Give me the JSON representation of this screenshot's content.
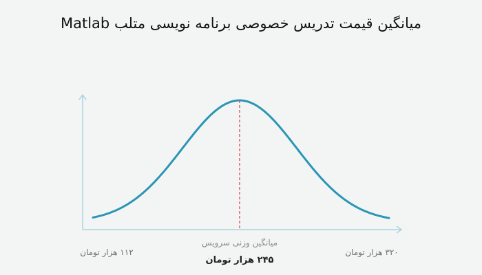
{
  "chart_data": {
    "type": "line",
    "title": "میانگین قیمت تدریس خصوصی برنامه نویسی متلب Matlab",
    "xlabel": "",
    "ylabel": "",
    "distribution": "normal",
    "min_label": "۱۱۲ هزار تومان",
    "max_label": "۳۲۰ هزار تومان",
    "mean_caption": "میانگین وزنی سرویس",
    "mean_value_label": "۲۴۵ هزار تومان",
    "min_value": 112,
    "max_value": 320,
    "mean_value": 245,
    "grid": false,
    "legend": "none",
    "colors": {
      "curve": "#2a95b5",
      "mean_line": "#e0455a",
      "axis": "#a9d3df",
      "background": "#f3f5f5"
    }
  }
}
